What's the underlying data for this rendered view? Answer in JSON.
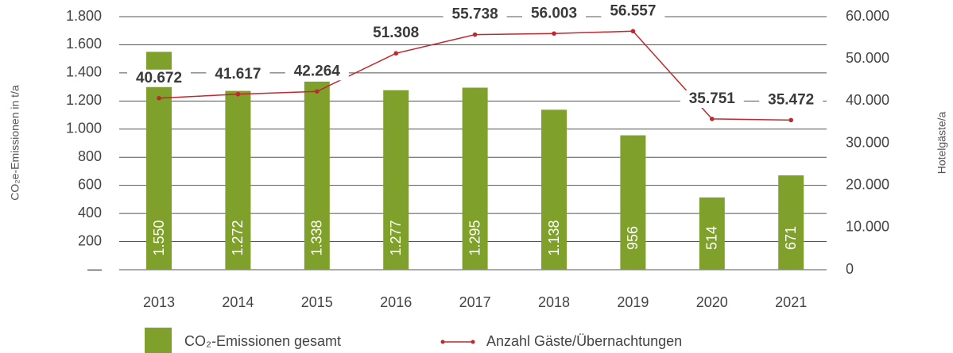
{
  "chart_data": {
    "type": "bar_line",
    "ylabel": "CO₂e-Emissionen in t/a",
    "y2label": "Hotelgäste/a",
    "categories": [
      "2013",
      "2014",
      "2015",
      "2016",
      "2017",
      "2018",
      "2019",
      "2020",
      "2021"
    ],
    "series": [
      {
        "name": "CO₂-Emissionen gesamt",
        "color": "#7fa12b",
        "type": "bar",
        "values": [
          1550,
          1272,
          1338,
          1277,
          1295,
          1138,
          956,
          514,
          671
        ],
        "value_labels": [
          "1.550",
          "1.272",
          "1.338",
          "1.277",
          "1.295",
          "1.138",
          "956",
          "514",
          "671"
        ]
      },
      {
        "name": "Anzahl Gäste/Übernachtungen",
        "color": "#c1272d",
        "type": "line",
        "axis": "y2",
        "values": [
          40672,
          41617,
          42264,
          51308,
          55738,
          56003,
          56557,
          35751,
          35472
        ],
        "value_labels": [
          "40.672",
          "41.617",
          "42.264",
          "51.308",
          "55.738",
          "56.003",
          "56.557",
          "35.751",
          "35.472"
        ]
      }
    ],
    "ylim": [
      0,
      1800
    ],
    "yticks": [
      {
        "value": 0,
        "label": "—"
      },
      200,
      400,
      600,
      800,
      {
        "value": 1000,
        "label": "1.000"
      },
      {
        "value": 1200,
        "label": "1.200"
      },
      {
        "value": 1400,
        "label": "1.400"
      },
      {
        "value": 1600,
        "label": "1.600"
      },
      {
        "value": 1800,
        "label": "1.800"
      }
    ],
    "y2lim": [
      0,
      60000
    ],
    "y2ticks": [
      0,
      {
        "value": 10000,
        "label": "10.000"
      },
      {
        "value": 20000,
        "label": "20.000"
      },
      {
        "value": 30000,
        "label": "30.000"
      },
      {
        "value": 40000,
        "label": "40.000"
      },
      {
        "value": 50000,
        "label": "50.000"
      },
      {
        "value": 60000,
        "label": "60.000"
      }
    ],
    "grid": true
  }
}
